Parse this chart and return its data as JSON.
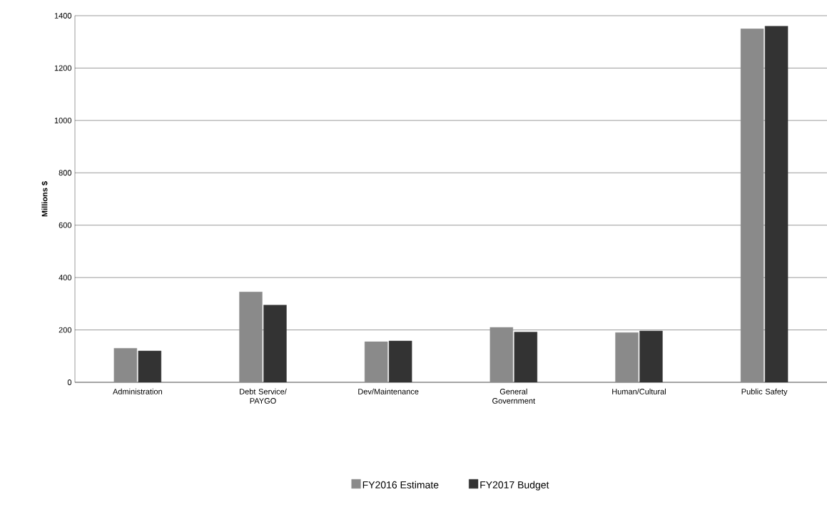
{
  "chart_data": {
    "type": "bar",
    "ylabel": "Millions $",
    "categories": [
      "Administration",
      "Debt Service/ PAYGO",
      "Dev/Maintenance",
      "General Government",
      "Human/Cultural",
      "Public Safety"
    ],
    "series": [
      {
        "name": "FY2016 Estimate",
        "color": "#8a8a8a",
        "values": [
          130,
          345,
          155,
          210,
          190,
          1350
        ]
      },
      {
        "name": "FY2017 Budget",
        "color": "#333333",
        "values": [
          120,
          295,
          158,
          192,
          196,
          1360
        ]
      }
    ],
    "ylim": [
      0,
      1400
    ],
    "yticks": [
      0,
      200,
      400,
      600,
      800,
      1000,
      1200,
      1400
    ],
    "grid": "y",
    "legend": "bottom"
  }
}
